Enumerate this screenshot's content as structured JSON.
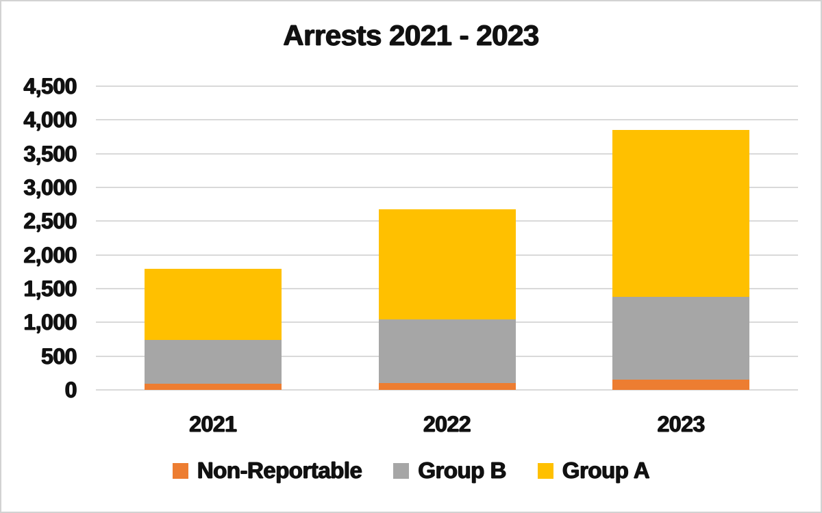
{
  "colors": {
    "non_reportable": "#ED7D31",
    "group_b": "#A6A6A6",
    "group_a": "#FFC000",
    "gridline": "#D9D9D9",
    "text": "#111111",
    "frame_border": "#D2D2D2",
    "background": "#FFFFFF"
  },
  "chart_data": {
    "type": "bar",
    "stacked": true,
    "title": "Arrests 2021 - 2023",
    "xlabel": "",
    "ylabel": "",
    "categories": [
      "2021",
      "2022",
      "2023"
    ],
    "series": [
      {
        "name": "Non-Reportable",
        "color_key": "non_reportable",
        "values": [
          90,
          100,
          150
        ]
      },
      {
        "name": "Group B",
        "color_key": "group_b",
        "values": [
          650,
          940,
          1230
        ]
      },
      {
        "name": "Group A",
        "color_key": "group_a",
        "values": [
          1050,
          1640,
          2470
        ]
      }
    ],
    "stack_totals": [
      1790,
      2680,
      3850
    ],
    "ylim": [
      0,
      4500
    ],
    "ytick_step": 500,
    "ytick_labels": [
      "0",
      "500",
      "1,000",
      "1,500",
      "2,000",
      "2,500",
      "3,000",
      "3,500",
      "4,000",
      "4,500"
    ],
    "grid": true,
    "legend_position": "bottom"
  }
}
